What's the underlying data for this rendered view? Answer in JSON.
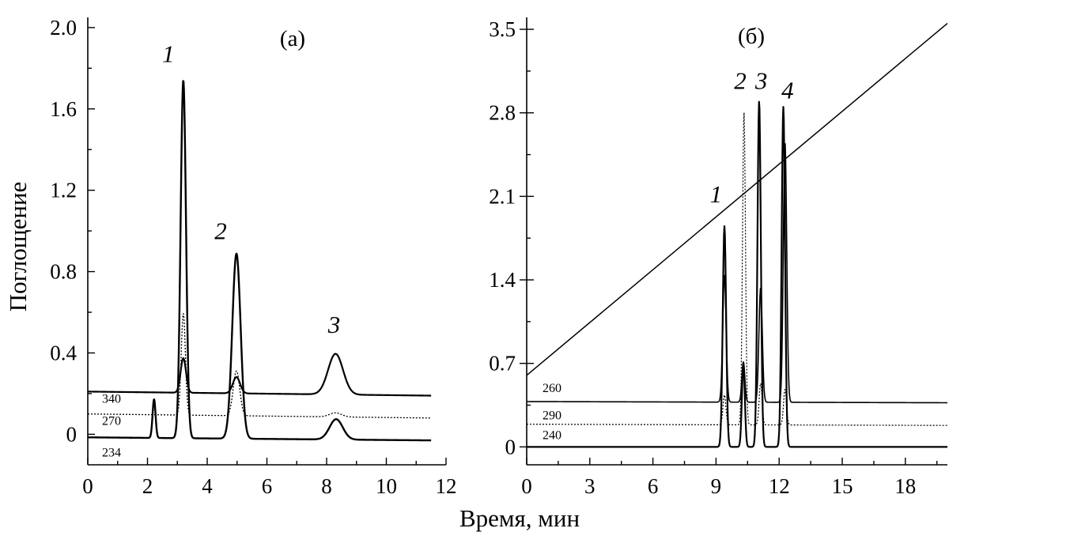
{
  "figure": {
    "xlabel": "Время, мин",
    "ylabel": "Поглощение"
  },
  "chart_data": [
    {
      "type": "line",
      "title": "(а)",
      "xlabel": "Время, мин",
      "ylabel": "Поглощение",
      "xlim": [
        0,
        12
      ],
      "ylim": [
        -0.15,
        2.05
      ],
      "x_ticks": [
        0,
        2,
        4,
        6,
        8,
        10,
        12
      ],
      "y_ticks": [
        0,
        0.4,
        0.8,
        1.2,
        1.6,
        2.0
      ],
      "y_tick_labels": [
        "0",
        "0.4",
        "0.8",
        "1.2",
        "1.6",
        "2.0"
      ],
      "series": [
        {
          "name": "340",
          "baseline": 0.21,
          "end_baseline": 0.19,
          "peaks": [
            {
              "x": 3.2,
              "height": 0.17,
              "width": 0.09
            },
            {
              "x": 4.98,
              "height": 0.08,
              "width": 0.12
            },
            {
              "x": 8.3,
              "height": 0.2,
              "width": 0.25
            }
          ],
          "stroke": 2.2,
          "dash": "",
          "x_end": 11.5
        },
        {
          "name": "270",
          "baseline": 0.1,
          "end_baseline": 0.08,
          "peaks": [
            {
              "x": 3.2,
              "height": 0.5,
              "width": 0.07
            },
            {
              "x": 4.98,
              "height": 0.22,
              "width": 0.11
            },
            {
              "x": 8.3,
              "height": 0.02,
              "width": 0.2
            }
          ],
          "stroke": 1.3,
          "dash": "2 2",
          "x_end": 11.5
        },
        {
          "name": "234",
          "baseline": -0.015,
          "end_baseline": -0.03,
          "peaks": [
            {
              "x": 2.22,
              "height": 0.19,
              "width": 0.05
            },
            {
              "x": 3.2,
              "height": 1.76,
              "width": 0.09
            },
            {
              "x": 4.98,
              "height": 0.91,
              "width": 0.14
            },
            {
              "x": 8.32,
              "height": 0.1,
              "width": 0.22
            }
          ],
          "stroke": 2.4,
          "dash": "",
          "x_end": 11.5
        }
      ],
      "peak_labels": [
        {
          "text": "1",
          "x": 2.7,
          "y": 1.83
        },
        {
          "text": "2",
          "x": 4.45,
          "y": 0.96
        },
        {
          "text": "3",
          "x": 8.25,
          "y": 0.5
        }
      ]
    },
    {
      "type": "line",
      "title": "(б)",
      "xlabel": "Время, мин",
      "ylabel": "",
      "xlim": [
        0,
        20
      ],
      "ylim": [
        -0.15,
        3.6
      ],
      "x_ticks": [
        0,
        3,
        6,
        9,
        12,
        15,
        18
      ],
      "y_ticks": [
        0,
        0.7,
        1.4,
        2.1,
        2.8,
        3.5
      ],
      "y_tick_labels": [
        "0",
        "0.7",
        "1.4",
        "2.1",
        "2.8",
        "3.5"
      ],
      "series": [
        {
          "name": "260",
          "baseline": 0.38,
          "end_baseline": 0.37,
          "peaks": [
            {
              "x": 9.4,
              "height": 1.06,
              "width": 0.08
            },
            {
              "x": 10.3,
              "height": 0.34,
              "width": 0.07
            },
            {
              "x": 11.12,
              "height": 0.96,
              "width": 0.08
            },
            {
              "x": 12.28,
              "height": 2.18,
              "width": 0.08
            }
          ],
          "stroke": 1.6,
          "dash": "",
          "x_end": 20
        },
        {
          "name": "290",
          "baseline": 0.19,
          "end_baseline": 0.18,
          "peaks": [
            {
              "x": 9.4,
              "height": 0.25,
              "width": 0.07
            },
            {
              "x": 10.33,
              "height": 2.62,
              "width": 0.07
            },
            {
              "x": 11.12,
              "height": 0.35,
              "width": 0.07
            },
            {
              "x": 12.28,
              "height": 0.3,
              "width": 0.07
            }
          ],
          "stroke": 1.2,
          "dash": "2 2",
          "x_end": 20
        },
        {
          "name": "240",
          "baseline": 0.0,
          "end_baseline": 0.0,
          "peaks": [
            {
              "x": 9.4,
              "height": 1.85,
              "width": 0.08
            },
            {
              "x": 10.3,
              "height": 0.7,
              "width": 0.07
            },
            {
              "x": 11.05,
              "height": 2.9,
              "width": 0.08
            },
            {
              "x": 12.2,
              "height": 2.85,
              "width": 0.08
            }
          ],
          "stroke": 2.2,
          "dash": "",
          "x_end": 20
        }
      ],
      "gradient_line": {
        "x": [
          0,
          20
        ],
        "y": [
          0.6,
          3.55
        ]
      },
      "peak_labels": [
        {
          "text": "1",
          "x": 9.0,
          "y": 2.05
        },
        {
          "text": "2",
          "x": 10.15,
          "y": 3.0
        },
        {
          "text": "3",
          "x": 11.15,
          "y": 3.0
        },
        {
          "text": "4",
          "x": 12.4,
          "y": 2.92
        }
      ]
    }
  ]
}
